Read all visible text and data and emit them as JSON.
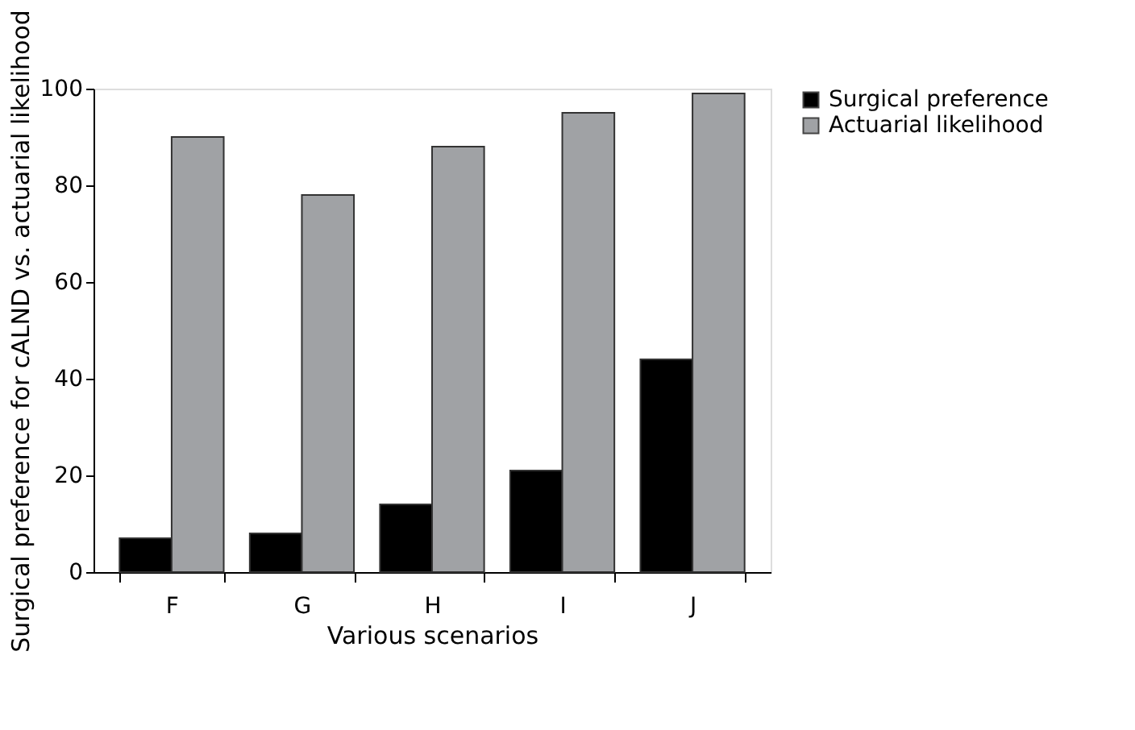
{
  "chart_data": {
    "type": "bar",
    "xlabel": "Various scenarios",
    "ylabel": "Surgical preference for cALND vs. actuarial likelihood",
    "categories": [
      "F",
      "G",
      "H",
      "I",
      "J"
    ],
    "series": [
      {
        "name": "Surgical preference",
        "color": "#000000",
        "values": [
          7,
          8,
          14,
          21,
          44
        ]
      },
      {
        "name": "Actuarial likelihood",
        "color": "#a0a2a5",
        "values": [
          90,
          78,
          88,
          95,
          99
        ]
      }
    ],
    "ylim": [
      0,
      100
    ],
    "yticks": [
      0,
      20,
      40,
      60,
      80,
      100
    ],
    "grid": false,
    "legend": "right"
  }
}
